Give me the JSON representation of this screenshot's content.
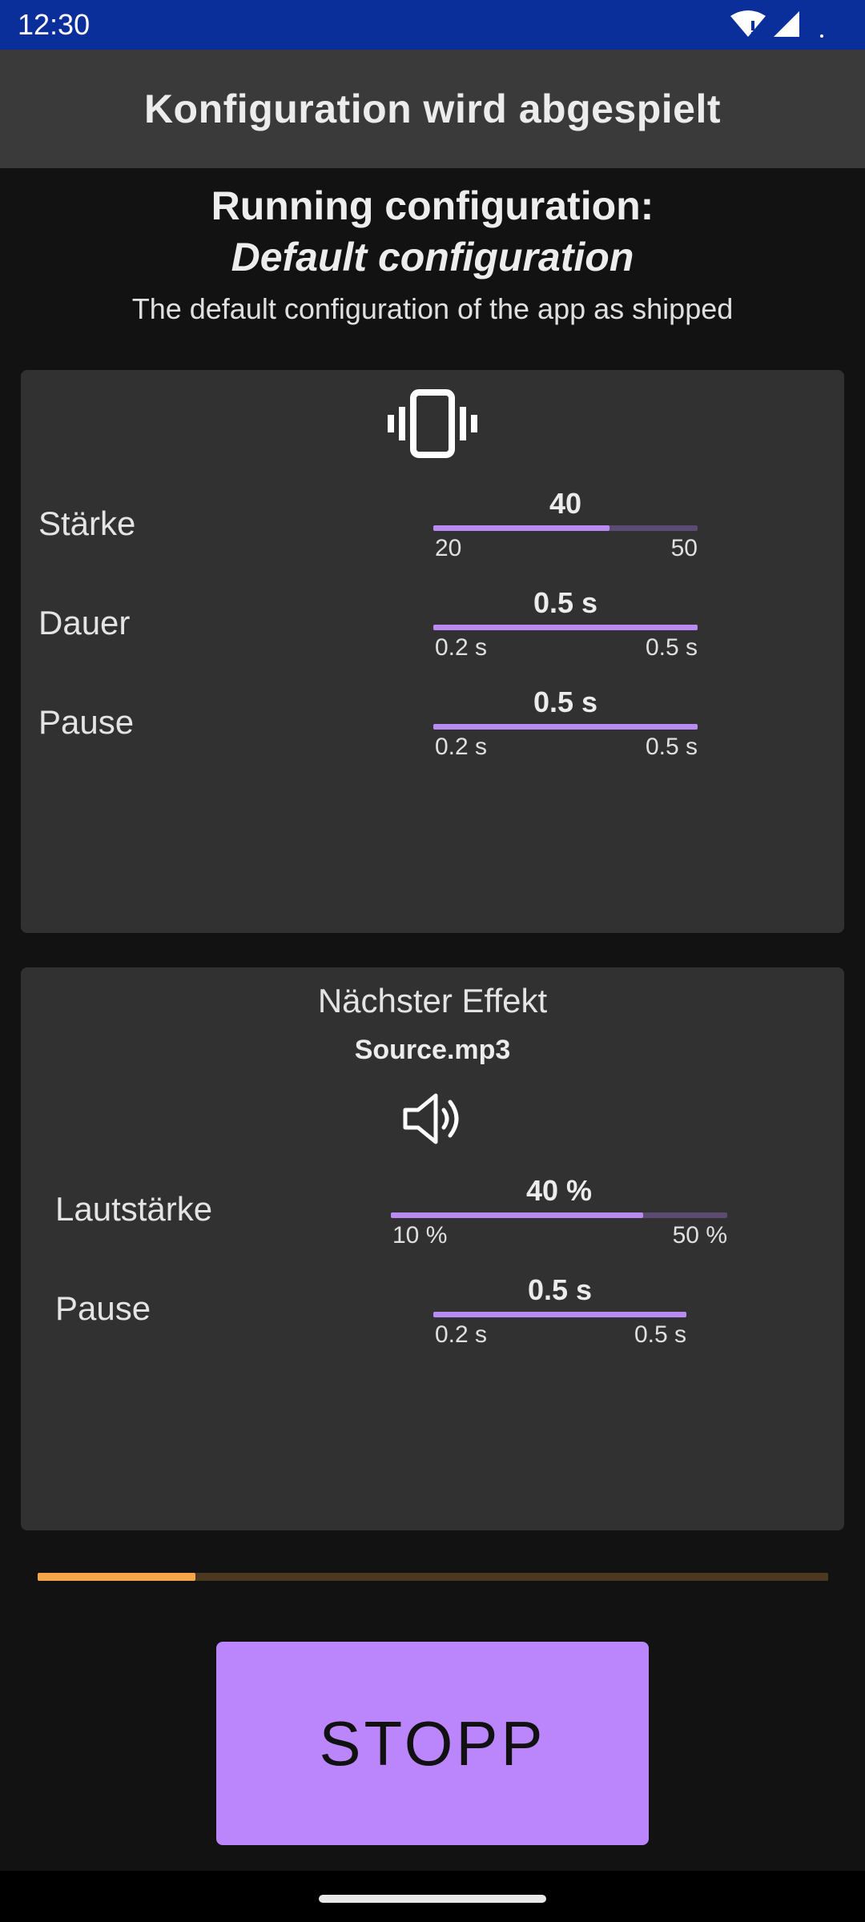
{
  "status_bar": {
    "time": "12:30",
    "icons": [
      "wifi-icon",
      "signal-icon"
    ]
  },
  "app_bar": {
    "title": "Konfiguration wird abgespielt"
  },
  "header": {
    "label": "Running configuration:",
    "name": "Default configuration",
    "description": "The default configuration of the app as shipped"
  },
  "vibration_card": {
    "icon": "vibration-icon",
    "rows": [
      {
        "label": "Stärke",
        "value": "40",
        "min": "20",
        "max": "50",
        "fill": 0.667
      },
      {
        "label": "Dauer",
        "value": "0.5 s",
        "min": "0.2 s",
        "max": "0.5 s",
        "fill": 1.0
      },
      {
        "label": "Pause",
        "value": "0.5 s",
        "min": "0.2 s",
        "max": "0.5 s",
        "fill": 1.0
      }
    ]
  },
  "audio_card": {
    "title": "Nächster Effekt",
    "file": "Source.mp3",
    "icon": "speaker-icon",
    "rows": [
      {
        "label": "Lautstärke",
        "value": "40 %",
        "min": "10 %",
        "max": "50 %",
        "fill": 0.75
      },
      {
        "label": "Pause",
        "value": "0.5 s",
        "min": "0.2 s",
        "max": "0.5 s",
        "fill": 1.0
      }
    ]
  },
  "progress": {
    "value": 0.2
  },
  "stop_button": {
    "label": "STOPP"
  },
  "colors": {
    "accent": "#bb86fc",
    "progress": "#f5a64a",
    "status_bar": "#0b2f9a",
    "card": "#313131"
  }
}
